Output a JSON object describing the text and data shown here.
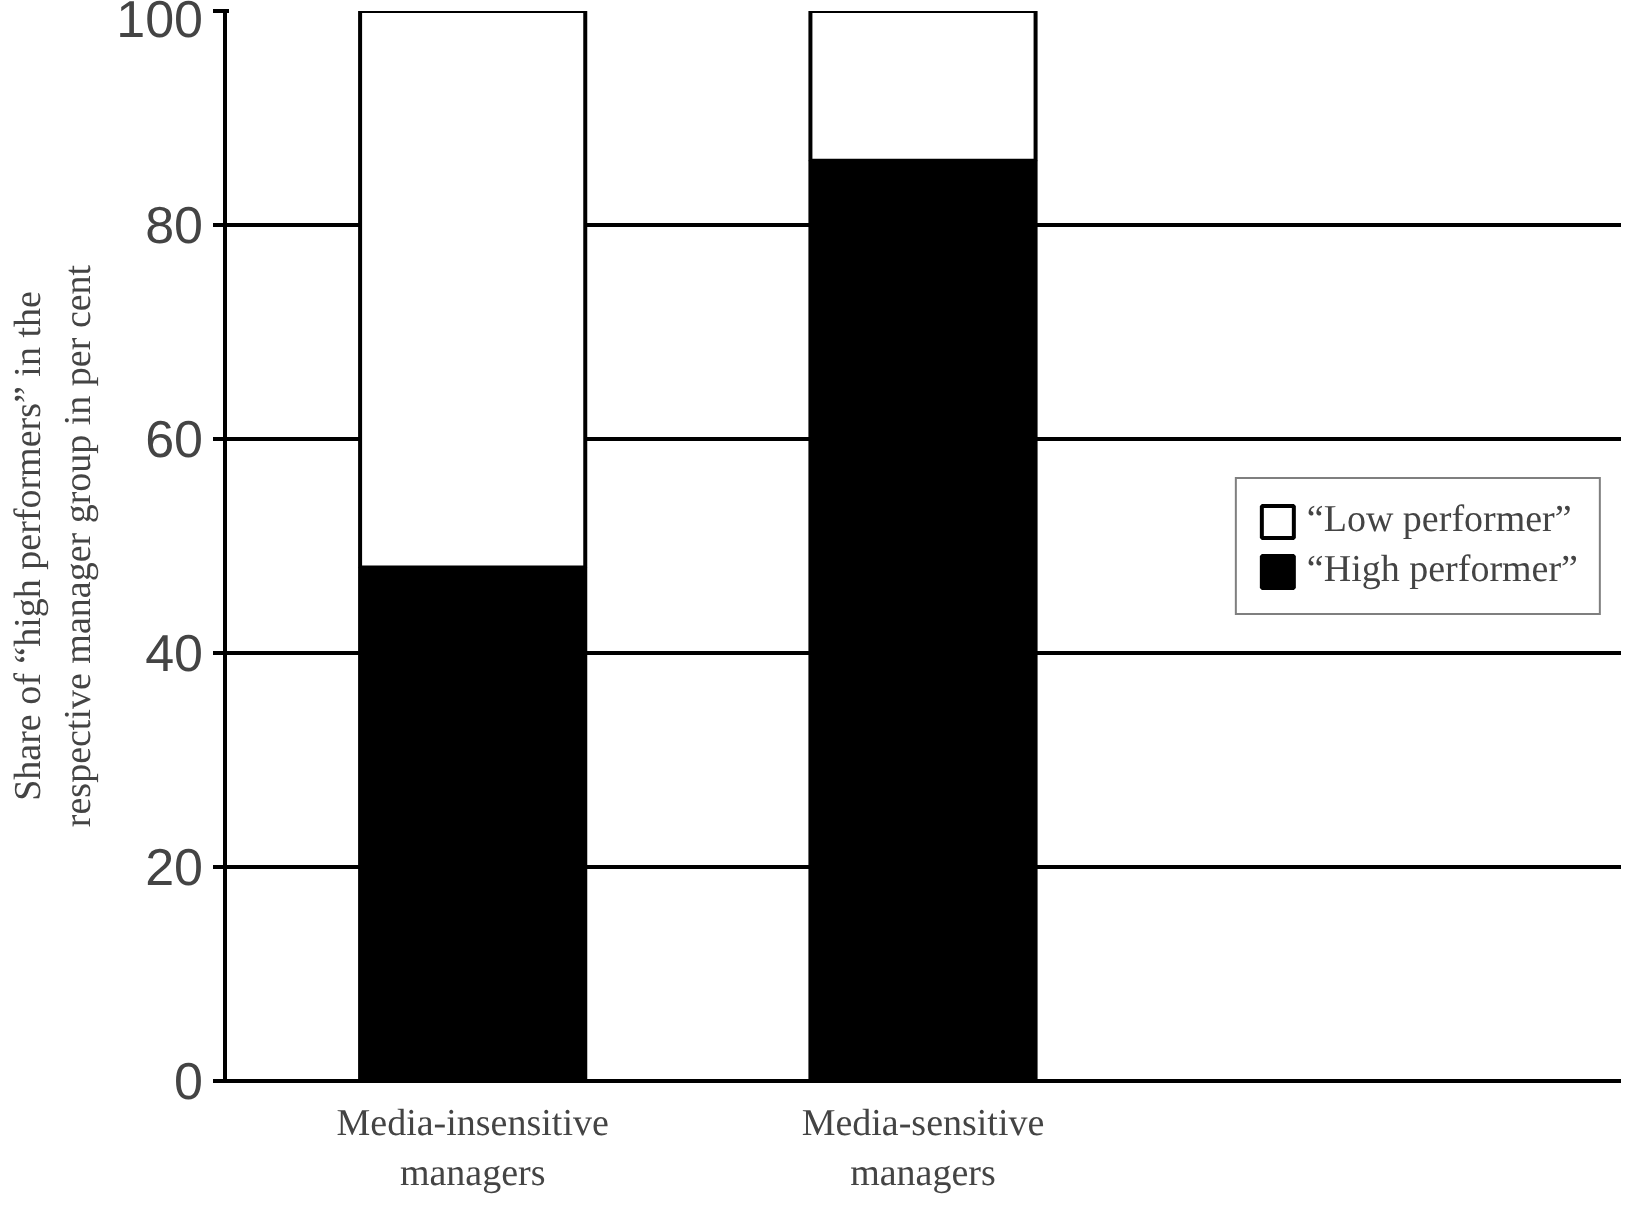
{
  "chart_data": {
    "type": "bar",
    "stacked": true,
    "ylabel": "Share of “high performers” in the respective manager group in per cent",
    "categories": [
      "Media-insensitive managers",
      "Media-sensitive managers"
    ],
    "series": [
      {
        "name": "“High performer”",
        "color": "#000000",
        "values": [
          48,
          86
        ]
      },
      {
        "name": "“Low performer”",
        "color": "#ffffff",
        "values": [
          52,
          14
        ]
      }
    ],
    "ylim": [
      0,
      100
    ],
    "yticks": [
      0,
      20,
      40,
      60,
      80,
      100
    ],
    "grid": "y",
    "legend": "right"
  }
}
